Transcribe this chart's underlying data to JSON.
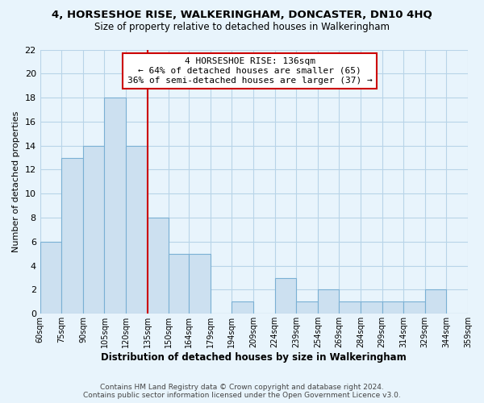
{
  "title": "4, HORSESHOE RISE, WALKERINGHAM, DONCASTER, DN10 4HQ",
  "subtitle": "Size of property relative to detached houses in Walkeringham",
  "xlabel": "Distribution of detached houses by size in Walkeringham",
  "ylabel": "Number of detached properties",
  "bin_edges": [
    60,
    75,
    90,
    105,
    120,
    135,
    150,
    164,
    179,
    194,
    209,
    224,
    239,
    254,
    269,
    284,
    299,
    314,
    329,
    344,
    359
  ],
  "bin_labels": [
    "60sqm",
    "75sqm",
    "90sqm",
    "105sqm",
    "120sqm",
    "135sqm",
    "150sqm",
    "164sqm",
    "179sqm",
    "194sqm",
    "209sqm",
    "224sqm",
    "239sqm",
    "254sqm",
    "269sqm",
    "284sqm",
    "299sqm",
    "314sqm",
    "329sqm",
    "344sqm",
    "359sqm"
  ],
  "counts": [
    6,
    13,
    14,
    18,
    14,
    8,
    5,
    5,
    0,
    1,
    0,
    3,
    1,
    2,
    1,
    1,
    1,
    1,
    2,
    0
  ],
  "bar_color": "#cce0f0",
  "bar_edge_color": "#7ab0d4",
  "property_line_x": 135,
  "property_line_color": "#cc0000",
  "annotation_title": "4 HORSESHOE RISE: 136sqm",
  "annotation_line1": "← 64% of detached houses are smaller (65)",
  "annotation_line2": "36% of semi-detached houses are larger (37) →",
  "annotation_box_facecolor": "#ffffff",
  "annotation_box_edgecolor": "#cc0000",
  "ylim": [
    0,
    22
  ],
  "yticks": [
    0,
    2,
    4,
    6,
    8,
    10,
    12,
    14,
    16,
    18,
    20,
    22
  ],
  "footer_line1": "Contains HM Land Registry data © Crown copyright and database right 2024.",
  "footer_line2": "Contains public sector information licensed under the Open Government Licence v3.0.",
  "background_color": "#e8f4fc",
  "axes_background_color": "#e8f4fc",
  "grid_color": "#b8d4e8",
  "annotation_fontsize": 8.0,
  "title_fontsize": 9.5,
  "subtitle_fontsize": 8.5,
  "xlabel_fontsize": 8.5,
  "ylabel_fontsize": 8.0,
  "footer_fontsize": 6.5
}
